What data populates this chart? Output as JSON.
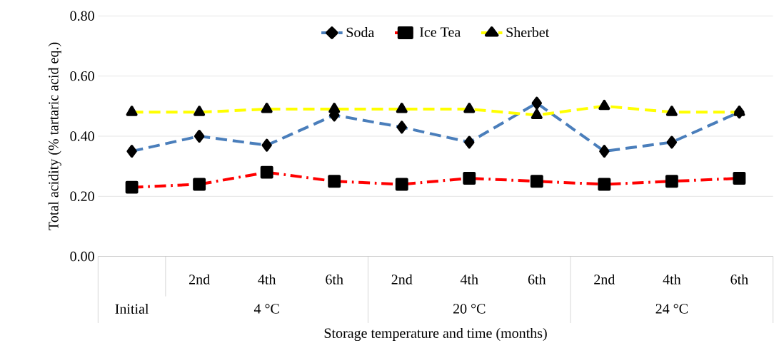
{
  "chart_data": {
    "type": "line",
    "xlabel": "Storage temperature and time (months)",
    "ylabel": "Total acidity (% tartaric acid eq.)",
    "categories": [
      null,
      "2nd",
      "4th",
      "6th",
      "2nd",
      "4th",
      "6th",
      "2nd",
      "4th",
      "6th"
    ],
    "annotations": [
      "Initial",
      "4 °C",
      "20 °C",
      "24 °C"
    ],
    "series": [
      {
        "name": "Soda",
        "color": "#4a7ebb",
        "marker": "diamond",
        "line_style": "dashed",
        "values": [
          0.35,
          0.4,
          0.37,
          0.47,
          0.43,
          0.38,
          0.51,
          0.35,
          0.38,
          0.48
        ]
      },
      {
        "name": "Ice Tea",
        "color": "#ff0000",
        "marker": "square",
        "line_style": "dashdot",
        "values": [
          0.23,
          0.24,
          0.28,
          0.25,
          0.24,
          0.26,
          0.25,
          0.24,
          0.25,
          0.26
        ]
      },
      {
        "name": "Sherbet",
        "color": "#ffff00",
        "marker": "triangle",
        "line_style": "dashed",
        "values": [
          0.48,
          0.48,
          0.49,
          0.49,
          0.49,
          0.49,
          0.47,
          0.5,
          0.48,
          0.48
        ]
      }
    ],
    "ylim": [
      0,
      0.8
    ],
    "yticks": [
      {
        "value": 0,
        "label": "0.00"
      },
      {
        "value": 0.2,
        "label": "0.20"
      },
      {
        "value": 0.4,
        "label": "0.40"
      },
      {
        "value": 0.6,
        "label": "0.60"
      },
      {
        "value": 0.8,
        "label": "0.80"
      }
    ],
    "grid": "y",
    "legend": "top"
  }
}
